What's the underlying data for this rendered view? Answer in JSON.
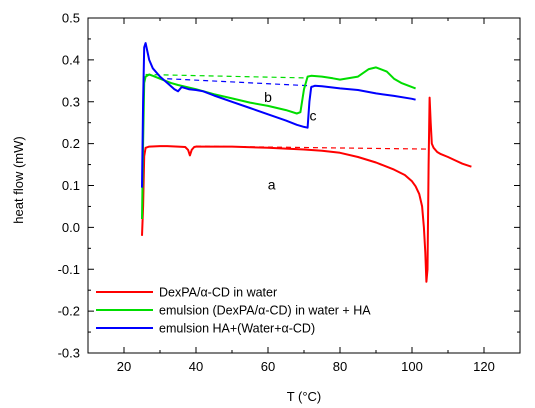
{
  "chart_data": {
    "type": "line",
    "title": "",
    "xlabel": "T (°C)",
    "ylabel": "heat flow (mW)",
    "xlim": [
      10,
      130
    ],
    "ylim": [
      -0.3,
      0.5
    ],
    "x_ticks": [
      "20",
      "40",
      "60",
      "80",
      "100",
      "120"
    ],
    "y_ticks": [
      "-0.3",
      "-0.2",
      "-0.1",
      "0.0",
      "0.1",
      "0.2",
      "0.3",
      "0.4",
      "0.5"
    ],
    "grid": false,
    "legend_position": "bottom-left",
    "series": [
      {
        "name": "DexPA/α-CD in water",
        "color": "#ff0000",
        "x": [
          25,
          25.3,
          25.6,
          26,
          27,
          30,
          32,
          35,
          37,
          37.8,
          38.3,
          38.8,
          39.5,
          40,
          50,
          60,
          70,
          75,
          80,
          85,
          90,
          95,
          98,
          100,
          101,
          102,
          102.8,
          103.3,
          103.7,
          104,
          104.3,
          104.6,
          104.9,
          105.2,
          105.5,
          106,
          107,
          108,
          110,
          112,
          114,
          116.5
        ],
        "y": [
          -0.02,
          0.05,
          0.17,
          0.19,
          0.193,
          0.194,
          0.194,
          0.193,
          0.192,
          0.185,
          0.172,
          0.185,
          0.192,
          0.193,
          0.193,
          0.19,
          0.186,
          0.183,
          0.178,
          0.168,
          0.155,
          0.138,
          0.125,
          0.11,
          0.098,
          0.08,
          0.05,
          0.0,
          -0.06,
          -0.13,
          -0.1,
          0.15,
          0.31,
          0.25,
          0.2,
          0.19,
          0.18,
          0.175,
          0.168,
          0.16,
          0.152,
          0.145
        ]
      },
      {
        "name": "emulsion (DexPA/α-CD) in water + HA",
        "color": "#00dd00",
        "x": [
          25,
          25.3,
          25.6,
          26,
          27,
          28,
          30,
          33,
          35,
          40,
          45,
          50,
          55,
          60,
          65,
          68,
          69,
          70,
          71,
          72,
          75,
          78,
          80,
          85,
          88,
          90,
          93,
          95,
          97,
          100,
          101
        ],
        "y": [
          0.02,
          0.2,
          0.345,
          0.36,
          0.365,
          0.362,
          0.355,
          0.345,
          0.34,
          0.33,
          0.318,
          0.308,
          0.298,
          0.29,
          0.28,
          0.272,
          0.275,
          0.33,
          0.36,
          0.362,
          0.36,
          0.356,
          0.353,
          0.36,
          0.378,
          0.382,
          0.372,
          0.355,
          0.345,
          0.335,
          0.332
        ]
      },
      {
        "name": "emulsion HA+(Water+α-CD)",
        "color": "#0000ff",
        "x": [
          25,
          25.3,
          25.6,
          26,
          26.5,
          27,
          28,
          30,
          32,
          34,
          35,
          36,
          38,
          40,
          42,
          45,
          50,
          55,
          60,
          65,
          68,
          70,
          71,
          71.5,
          72,
          73,
          75,
          80,
          85,
          90,
          95,
          100,
          101
        ],
        "y": [
          0.095,
          0.3,
          0.43,
          0.44,
          0.42,
          0.4,
          0.38,
          0.36,
          0.345,
          0.33,
          0.325,
          0.335,
          0.33,
          0.328,
          0.325,
          0.315,
          0.3,
          0.285,
          0.27,
          0.255,
          0.245,
          0.24,
          0.238,
          0.3,
          0.335,
          0.338,
          0.337,
          0.332,
          0.328,
          0.32,
          0.314,
          0.307,
          0.305
        ]
      }
    ],
    "baselines": [
      {
        "color": "#ff0000",
        "x": [
          40,
          104
        ],
        "y": [
          0.194,
          0.187
        ]
      },
      {
        "color": "#00dd00",
        "x": [
          26,
          70
        ],
        "y": [
          0.365,
          0.357
        ]
      },
      {
        "color": "#0000ff",
        "x": [
          32,
          72
        ],
        "y": [
          0.355,
          0.338
        ]
      }
    ],
    "annotations": [
      {
        "text": "a",
        "x": 61,
        "y": 0.09
      },
      {
        "text": "b",
        "x": 60,
        "y": 0.3
      },
      {
        "text": "c",
        "x": 72.5,
        "y": 0.255
      }
    ]
  }
}
